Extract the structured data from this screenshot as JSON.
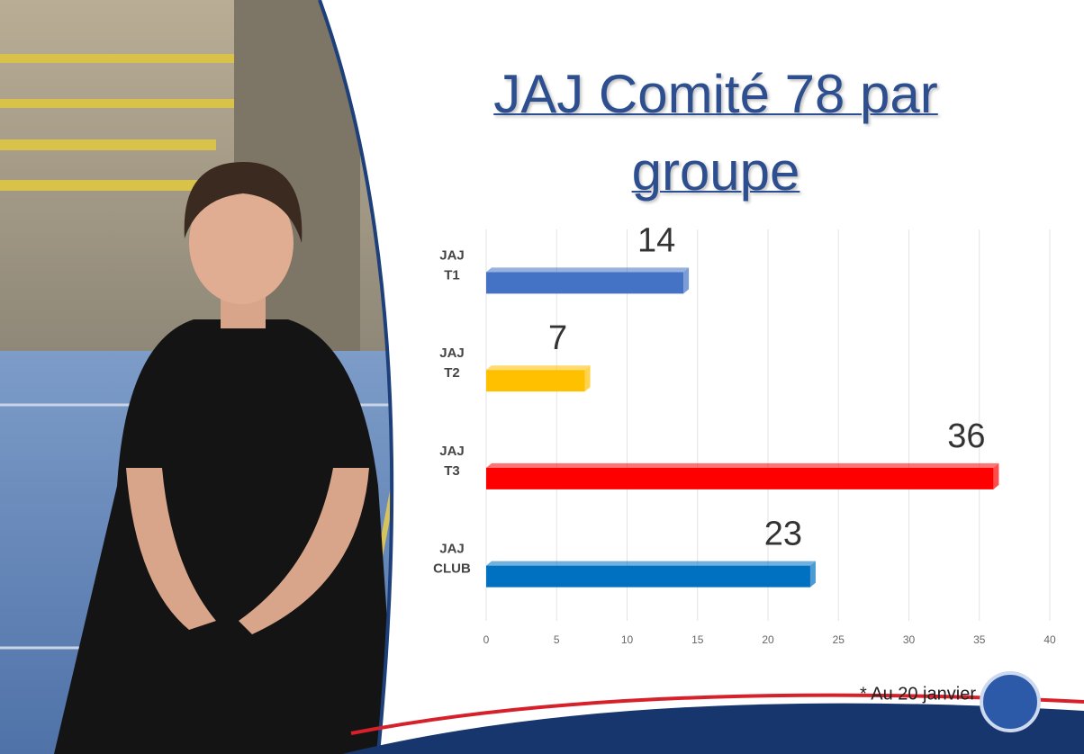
{
  "chart_data": {
    "type": "bar",
    "orientation": "horizontal",
    "title": "JAJ Comité 78 par groupe",
    "categories": [
      "JAJ T1",
      "JAJ T2",
      "JAJ T3",
      "JAJ CLUB"
    ],
    "values": [
      14,
      7,
      36,
      23
    ],
    "colors": [
      "#4472c4",
      "#ffc000",
      "#ff0000",
      "#0070c0"
    ],
    "xlim": [
      0,
      40
    ],
    "xticks": [
      0,
      5,
      10,
      15,
      20,
      25,
      30,
      35,
      40
    ],
    "grid": true,
    "footnote": "* Au 20 janvier"
  }
}
